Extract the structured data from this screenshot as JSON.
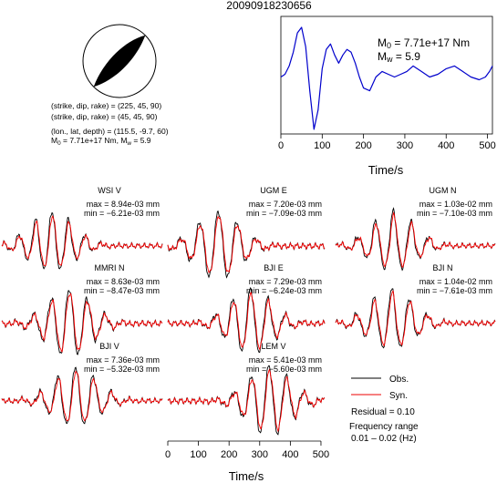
{
  "title": "20090918230656",
  "params": {
    "line1": "(strike, dip, rake) = (225, 45, 90)",
    "line2": "(strike, dip, rake) = (45, 45, 90)",
    "line3": "(lon., lat, depth) = (115.5, -9.7, 60)",
    "m0_text": "7.71e+17 Nm",
    "mw_text": "5.9"
  },
  "stf": {
    "m0_label": "7.71e+17 Nm",
    "mw_label": "5.9"
  },
  "legend": {
    "obs_label": "Obs.",
    "syn_label": "Syn.",
    "residual": "Residual = 0.10",
    "freq_title": "Frequency range",
    "freq_range": "0.01 – 0.02 (Hz)",
    "obs_color": "#000000",
    "syn_color": "#ff0000",
    "stf_color": "#0000cc"
  },
  "chart_data": [
    {
      "type": "line",
      "name": "source-time-function",
      "xlabel": "Time/s",
      "xlim": [
        0,
        512
      ],
      "xticks": [
        0,
        100,
        200,
        300,
        400,
        500
      ],
      "x": [
        0,
        10,
        20,
        30,
        40,
        50,
        60,
        70,
        80,
        90,
        100,
        110,
        120,
        130,
        140,
        150,
        160,
        170,
        180,
        190,
        200,
        215,
        230,
        245,
        260,
        275,
        290,
        305,
        320,
        340,
        360,
        380,
        400,
        420,
        440,
        460,
        480,
        495,
        505,
        512
      ],
      "y": [
        0.05,
        0.1,
        0.25,
        0.5,
        0.85,
        0.95,
        0.6,
        -0.2,
        -0.9,
        -0.55,
        0.2,
        0.55,
        0.65,
        0.45,
        0.3,
        0.45,
        0.55,
        0.5,
        0.3,
        0.05,
        -0.15,
        -0.2,
        0.05,
        0.15,
        0.1,
        0.05,
        0.1,
        0.15,
        0.25,
        0.15,
        0.05,
        0.1,
        0.2,
        0.25,
        0.15,
        0.05,
        0.0,
        0.05,
        0.15,
        0.25
      ]
    },
    {
      "type": "line",
      "name": "waveform-fits",
      "xlabel": "Time/s",
      "xlim": [
        0,
        512
      ],
      "xticks": [
        0,
        100,
        200,
        300,
        400,
        500
      ],
      "panels": [
        {
          "station": "WSI V",
          "max": "max = 8.94e-03 mm",
          "min": "min = −6.21e-03 mm",
          "peak_t": 160,
          "dt": 24,
          "amp": 1.0,
          "neg": 0.7
        },
        {
          "station": "UGM E",
          "max": "max = 7.20e-03 mm",
          "min": "min = −7.09e-03 mm",
          "peak_t": 165,
          "dt": 28,
          "amp": 1.0,
          "neg": 0.98
        },
        {
          "station": "UGM N",
          "max": "max = 1.03e-02 mm",
          "min": "min = −7.10e-03 mm",
          "peak_t": 185,
          "dt": 26,
          "amp": 1.0,
          "neg": 0.69
        },
        {
          "station": "MMRI N",
          "max": "max = 8.63e-03 mm",
          "min": "min = −8.47e-03 mm",
          "peak_t": 215,
          "dt": 26,
          "amp": 1.0,
          "neg": 0.98
        },
        {
          "station": "BJI E",
          "max": "max = 7.29e-03 mm",
          "min": "min = −6.24e-03 mm",
          "peak_t": 270,
          "dt": 26,
          "amp": 1.0,
          "neg": 0.86
        },
        {
          "station": "BJI N",
          "max": "max = 1.04e-02 mm",
          "min": "min = −7.61e-03 mm",
          "peak_t": 180,
          "dt": 26,
          "amp": 1.0,
          "neg": 0.73
        },
        {
          "station": "BJI V",
          "max": "max = 7.36e-03 mm",
          "min": "min = −5.32e-03 mm",
          "peak_t": 235,
          "dt": 26,
          "amp": 1.0,
          "neg": 0.72
        },
        {
          "station": "LEM V",
          "max": "max = 5.41e-03 mm",
          "min": "min = −5.60e-03 mm",
          "peak_t": 330,
          "dt": 26,
          "amp": 1.0,
          "neg": 1.0
        }
      ]
    }
  ]
}
